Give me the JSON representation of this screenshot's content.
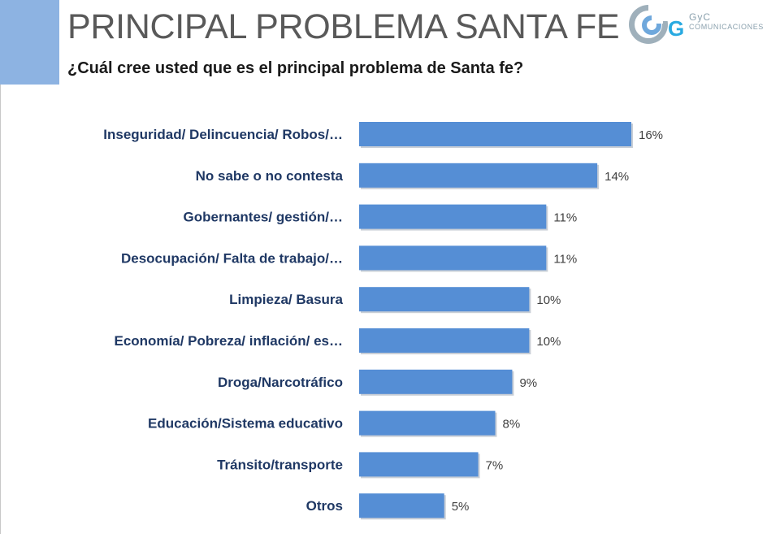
{
  "header": {
    "title": "PRINCIPAL PROBLEMA SANTA FE",
    "subtitle": "¿Cuál cree usted que es el principal problema de Santa fe?"
  },
  "logo": {
    "mark_text": "G",
    "name": "GyC",
    "sub": "COMUNICACIONES"
  },
  "colors": {
    "bar": "#558ed5",
    "accent": "#8db3e2",
    "category_text": "#1f3864",
    "title_text": "#595959"
  },
  "chart_data": {
    "type": "bar",
    "orientation": "horizontal",
    "categories": [
      "Inseguridad/ Delincuencia/ Robos/…",
      "No sabe o no contesta",
      "Gobernantes/ gestión/…",
      "Desocupación/ Falta de trabajo/…",
      "Limpieza/ Basura",
      "Economía/ Pobreza/ inflación/ es…",
      "Droga/Narcotráfico",
      "Educación/Sistema educativo",
      "Tránsito/transporte",
      "Otros"
    ],
    "values": [
      16,
      14,
      11,
      11,
      10,
      10,
      9,
      8,
      7,
      5
    ],
    "value_labels": [
      "16%",
      "14%",
      "11%",
      "11%",
      "10%",
      "10%",
      "9%",
      "8%",
      "7%",
      "5%"
    ],
    "unit": "%",
    "xlim": [
      0,
      16
    ],
    "grid": false,
    "legend": "none"
  }
}
